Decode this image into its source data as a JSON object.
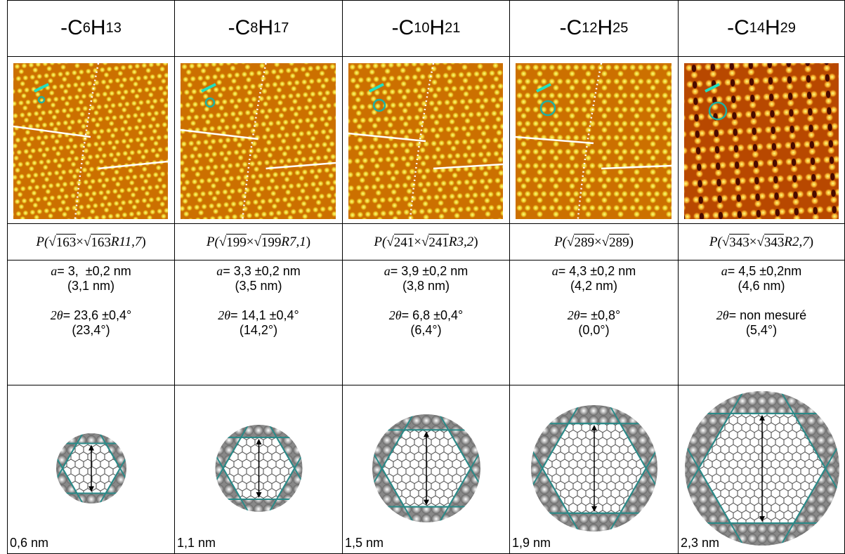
{
  "columns": [
    {
      "formula": {
        "c": "-C",
        "n": "6",
        "h": "H",
        "m": "13"
      },
      "notation": {
        "lead": "P(",
        "sign1": "√",
        "r1": "163",
        "times": "×",
        "sign2": "√",
        "r2": "163",
        "rot": "R11,7",
        "close": ")"
      },
      "a": {
        "sym": "a",
        "text": "= 3,  ±0,2 nm",
        "calc": "(3,1 nm)"
      },
      "angle": {
        "sym": "2θ",
        "text": "= 23,6 ±0,4°",
        "calc": "(23,4°)"
      },
      "size": "0,6 nm"
    },
    {
      "formula": {
        "c": "-C",
        "n": "8",
        "h": "H",
        "m": "17"
      },
      "notation": {
        "lead": "P(",
        "sign1": "√",
        "r1": "199",
        "times": "×",
        "sign2": "√",
        "r2": "199",
        "rot": "R7,1",
        "close": ")"
      },
      "a": {
        "sym": "a",
        "text": "= 3,3 ±0,2 nm",
        "calc": "(3,5 nm)"
      },
      "angle": {
        "sym": "2θ",
        "text": "= 14,1 ±0,4°",
        "calc": "(14,2°)"
      },
      "size": "1,1 nm"
    },
    {
      "formula": {
        "c": "-C",
        "n": "10",
        "h": "H",
        "m": "21"
      },
      "notation": {
        "lead": "P(",
        "sign1": "√",
        "r1": "241",
        "times": "×",
        "sign2": "√",
        "r2": "241",
        "rot": "R3,2",
        "close": ")"
      },
      "a": {
        "sym": "a",
        "text": "= 3,9 ±0,2 nm",
        "calc": "(3,8 nm)"
      },
      "angle": {
        "sym": "2θ",
        "text": "= 6,8 ±0,4°",
        "calc": "(6,4°)"
      },
      "size": "1,5 nm"
    },
    {
      "formula": {
        "c": "-C",
        "n": "12",
        "h": "H",
        "m": "25"
      },
      "notation": {
        "lead": "P(",
        "sign1": "√",
        "r1": "289",
        "times": "×",
        "sign2": "√",
        "r2": "289",
        "close": ")"
      },
      "a": {
        "sym": "a",
        "text": "= 4,3 ±0,2 nm",
        "calc": "(4,2 nm)"
      },
      "angle": {
        "sym": "2θ",
        "text": "= ±0,8°",
        "calc": "(0,0°)"
      },
      "size": "1,9 nm"
    },
    {
      "formula": {
        "c": "-C",
        "n": "14",
        "h": "H",
        "m": "29"
      },
      "notation": {
        "lead": "P(",
        "sign1": "√",
        "r1": "343",
        "times": "×",
        "sign2": "√",
        "r2": "343",
        "rot": "R2,7",
        "close": ")"
      },
      "a": {
        "sym": "a",
        "text": "= 4,5 ±0,2nm",
        "calc": "(4,6 nm)"
      },
      "angle": {
        "sym": "2θ",
        "text": "= non mesuré",
        "calc": "(5,4°)"
      },
      "size": "2,3 nm"
    }
  ]
}
